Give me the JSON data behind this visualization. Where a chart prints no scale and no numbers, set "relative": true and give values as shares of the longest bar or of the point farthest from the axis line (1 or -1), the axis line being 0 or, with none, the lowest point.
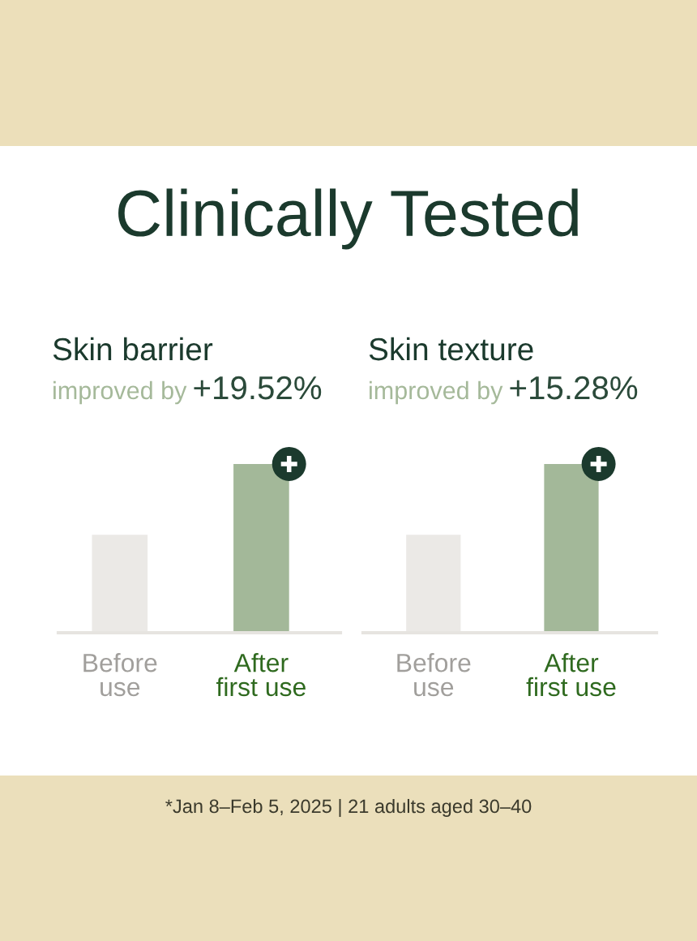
{
  "chart_data": [
    {
      "type": "bar",
      "title": "Skin barrier",
      "subtitle": "improved by +19.52%",
      "categories": [
        "Before\nuse",
        "After\nfirst use"
      ],
      "values": [
        0.58,
        1
      ],
      "colors": [
        "#ebe9e6",
        "#a3b899"
      ],
      "relative": true,
      "annotations": [
        "Clinically Tested"
      ]
    },
    {
      "type": "bar",
      "title": "Skin texture",
      "subtitle": "improved by +15.28%",
      "categories": [
        "Before\nuse",
        "After\nfirst use"
      ],
      "values": [
        0.58,
        1
      ],
      "colors": [
        "#ebe9e6",
        "#a3b899"
      ],
      "relative": true,
      "annotations": [
        "*Jan 8–Feb 5, 2025 | 21 adults aged 30–40"
      ]
    }
  ]
}
